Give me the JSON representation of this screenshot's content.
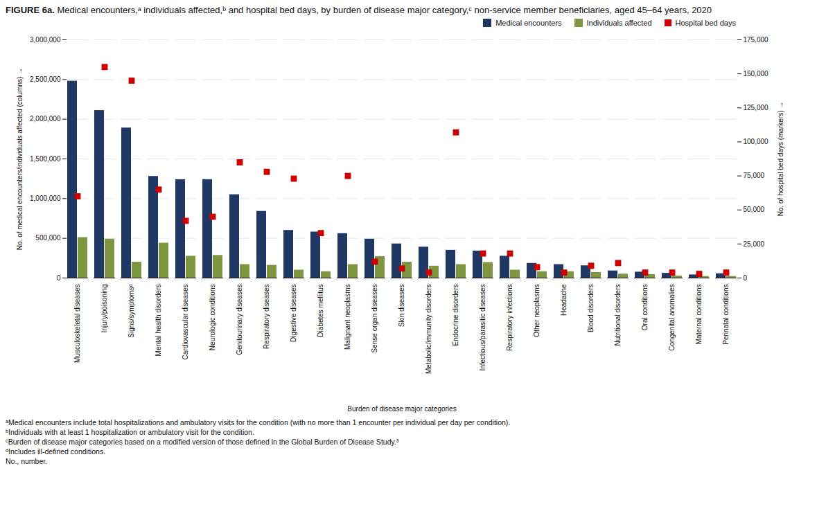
{
  "chart_data": {
    "type": "bar",
    "title": "FIGURE 6a. Medical encounters,ᵃ individuals affected,ᵇ and hospital bed days, by burden of disease major category,ᶜ non-service member beneficiaries, aged 45–64 years, 2020",
    "categories": [
      "Musculoskeletal diseases",
      "Injury/poisoning",
      "Signs/symptomsᵈ",
      "Mental health disorders",
      "Cardiovascular diseases",
      "Neurologic conditions",
      "Genitourinary diseases",
      "Respiratory diseases",
      "Digestive diseases",
      "Diabetes mellitus",
      "Malignant neoplasms",
      "Sense organ diseases",
      "Skin diseases",
      "Metabolic/immunity disorders",
      "Endocrine disorders",
      "Infectious/parasitic diseases",
      "Respiratory infections",
      "Other neoplasms",
      "Headache",
      "Blood disorders",
      "Nutritional disorders",
      "Oral conditions",
      "Congenital anomalies",
      "Maternal conditions",
      "Perinatal conditions"
    ],
    "series": [
      {
        "name": "Medical encounters",
        "color": "#1f3864",
        "values": [
          2480000,
          2110000,
          1890000,
          1280000,
          1240000,
          1240000,
          1050000,
          840000,
          600000,
          580000,
          560000,
          490000,
          430000,
          390000,
          350000,
          340000,
          275000,
          185000,
          170000,
          155000,
          90000,
          75000,
          60000,
          40000,
          55000
        ]
      },
      {
        "name": "Individuals affected",
        "color": "#7f9640",
        "values": [
          510000,
          490000,
          200000,
          440000,
          275000,
          285000,
          170000,
          160000,
          100000,
          80000,
          170000,
          270000,
          200000,
          150000,
          170000,
          195000,
          100000,
          80000,
          80000,
          70000,
          50000,
          45000,
          25000,
          20000,
          20000
        ]
      },
      {
        "name": "Hospital bed days",
        "type": "scatter",
        "marker": "square",
        "color": "#cc0000",
        "axis": "y2",
        "values": [
          60000,
          155000,
          145000,
          65000,
          42000,
          45000,
          85000,
          78000,
          73000,
          33000,
          75000,
          12000,
          7000,
          4000,
          107000,
          18000,
          18000,
          8000,
          4000,
          9000,
          11000,
          4000,
          4000,
          3000,
          4000
        ]
      }
    ],
    "xlabel": "Burden of disease major categories",
    "ylabel": "No. of medical encounters/individuals affected (columns)",
    "y2label": "No. of hospital bed days (markers)",
    "ylim": [
      0,
      3000000
    ],
    "yticks": [
      0,
      {
        "value": 500000,
        "label": "500,000"
      },
      {
        "value": 1000000,
        "label": "1,000,000"
      },
      {
        "value": 1500000,
        "label": "1,500,000"
      },
      {
        "value": 2000000,
        "label": "2,000,000"
      },
      {
        "value": 2500000,
        "label": "2,500,000"
      },
      {
        "value": 3000000,
        "label": "3,000,000"
      }
    ],
    "y2lim": [
      0,
      175000
    ],
    "y2ticks": [
      0,
      {
        "value": 25000,
        "label": "25,000"
      },
      {
        "value": 50000,
        "label": "50,000"
      },
      {
        "value": 75000,
        "label": "75,000"
      },
      {
        "value": 100000,
        "label": "100,000"
      },
      {
        "value": 125000,
        "label": "125,000"
      },
      {
        "value": 150000,
        "label": "150,000"
      },
      {
        "value": 175000,
        "label": "175,000"
      }
    ],
    "grid": true,
    "legend": "upper right",
    "annotations": [
      "ᵃMedical encounters include total hospitalizations and ambulatory visits for the condition (with no more than 1 encounter per individual per day per condition).",
      "ᵇIndividuals with at least 1 hospitalization or ambulatory visit for the condition.",
      "ᶜBurden of disease major categories based on a modified version of those defined in the Global Burden of Disease Study.³",
      "ᵈIncludes ill-defined conditions.",
      "No., number."
    ]
  }
}
